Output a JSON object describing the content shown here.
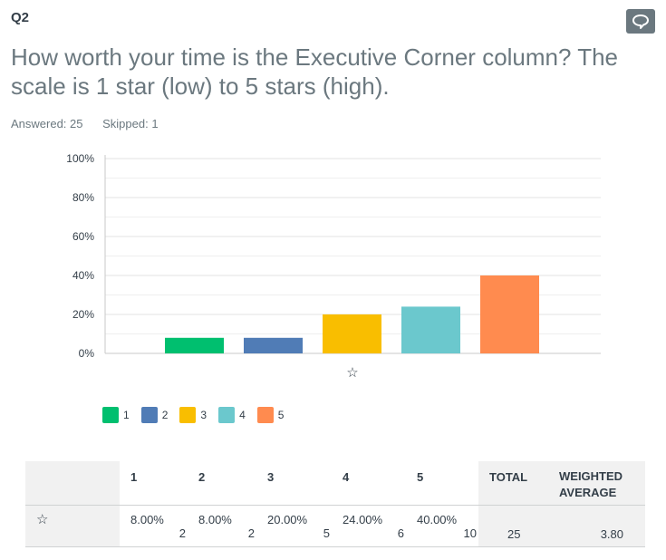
{
  "question": {
    "number": "Q2",
    "title": "How worth your time is the Executive Corner column? The scale is 1 star (low) to 5 stars (high).",
    "answered": "Answered: 25",
    "skipped": "Skipped: 1",
    "comment_icon": "speech-bubble-icon"
  },
  "chart_data": {
    "type": "bar",
    "categories": [
      "☆"
    ],
    "series": [
      {
        "name": "1",
        "values": [
          8.0
        ],
        "color": "#00bf6f"
      },
      {
        "name": "2",
        "values": [
          8.0
        ],
        "color": "#507cb6"
      },
      {
        "name": "3",
        "values": [
          20.0
        ],
        "color": "#f9be00"
      },
      {
        "name": "4",
        "values": [
          24.0
        ],
        "color": "#6bc8cd"
      },
      {
        "name": "5",
        "values": [
          40.0
        ],
        "color": "#ff8b4f"
      }
    ],
    "yticks": [
      "100%",
      "80%",
      "60%",
      "40%",
      "20%",
      "0%"
    ],
    "ylim": [
      0,
      100
    ],
    "grid": true,
    "legend": "bottom-left"
  },
  "table": {
    "headers": [
      "1",
      "2",
      "3",
      "4",
      "5",
      "TOTAL",
      "WEIGHTED AVERAGE"
    ],
    "row_label": "☆",
    "cells": [
      {
        "pct": "8.00%",
        "count": "2"
      },
      {
        "pct": "8.00%",
        "count": "2"
      },
      {
        "pct": "20.00%",
        "count": "5"
      },
      {
        "pct": "24.00%",
        "count": "6"
      },
      {
        "pct": "40.00%",
        "count": "10"
      }
    ],
    "total": "25",
    "weighted_average": "3.80"
  }
}
